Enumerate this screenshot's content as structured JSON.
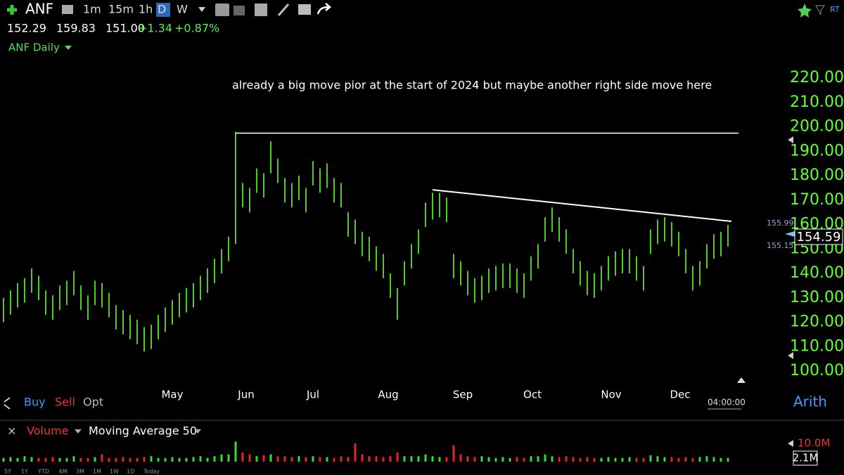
{
  "toolbar": {
    "symbol": "ANF",
    "intervals": [
      "1m",
      "15m",
      "1h",
      "D",
      "W"
    ],
    "active_interval": "D",
    "realtime": "RT"
  },
  "quote": [
    "152.29",
    "159.83",
    "151.00",
    "+1.34",
    "+0.87%"
  ],
  "chart_data": {
    "type": "ohlc",
    "title": "ANF Daily",
    "annotation": "already a big move pior at the start of 2024 but maybe another right side move here",
    "high": [
      130,
      133,
      136,
      138,
      142,
      139,
      133,
      131,
      135,
      137,
      141,
      135,
      131,
      137,
      136,
      132,
      127,
      125,
      123,
      121,
      118,
      119,
      123,
      126,
      129,
      132,
      134,
      136,
      139,
      142,
      146,
      150,
      155,
      198,
      177,
      175,
      183,
      181,
      194,
      187,
      179,
      177,
      180,
      175,
      186,
      183,
      185,
      179,
      177,
      165,
      162,
      157,
      155,
      151,
      148,
      140,
      134,
      145,
      152,
      158,
      169,
      173,
      173,
      171,
      148,
      145,
      141,
      138,
      139,
      142,
      143,
      144,
      144,
      142,
      140,
      147,
      152,
      163,
      167,
      163,
      158,
      150,
      145,
      141,
      140,
      143,
      147,
      149,
      150,
      150,
      147,
      143,
      158,
      162,
      163,
      161,
      157,
      150,
      143,
      145,
      152,
      156,
      157,
      159.83
    ],
    "low": [
      120,
      123,
      126,
      128,
      132,
      129,
      123,
      121,
      125,
      127,
      131,
      125,
      121,
      127,
      126,
      122,
      117,
      115,
      113,
      111,
      108,
      109,
      113,
      116,
      119,
      122,
      124,
      126,
      129,
      132,
      136,
      140,
      145,
      152,
      167,
      165,
      173,
      171,
      181,
      177,
      169,
      167,
      170,
      165,
      176,
      173,
      175,
      169,
      167,
      155,
      152,
      147,
      145,
      141,
      138,
      130,
      121,
      135,
      142,
      148,
      159,
      162,
      163,
      161,
      138,
      135,
      131,
      128,
      129,
      132,
      133,
      134,
      134,
      132,
      130,
      137,
      142,
      153,
      157,
      153,
      148,
      140,
      135,
      131,
      130,
      133,
      137,
      139,
      140,
      140,
      137,
      133,
      148,
      152,
      153,
      151,
      147,
      140,
      133,
      135,
      142,
      146,
      147,
      151
    ],
    "color": "#66ff33",
    "xticks": [
      {
        "value": 24,
        "label": "May"
      },
      {
        "value": 34.5,
        "label": "Jun"
      },
      {
        "value": 44,
        "label": "Jul"
      },
      {
        "value": 54.7,
        "label": "Aug"
      },
      {
        "value": 65.3,
        "label": "Sep"
      },
      {
        "value": 75.2,
        "label": "Oct"
      },
      {
        "value": 86.4,
        "label": "Nov"
      },
      {
        "value": 96.2,
        "label": "Dec"
      }
    ],
    "ylim": [
      100,
      220
    ],
    "yticks": [
      {
        "value": 100,
        "label": "100.00"
      },
      {
        "value": 110,
        "label": "110.00"
      },
      {
        "value": 120,
        "label": "120.00"
      },
      {
        "value": 130,
        "label": "130.00"
      },
      {
        "value": 140,
        "label": "140.00"
      },
      {
        "value": 150,
        "label": "150.00"
      },
      {
        "value": 160,
        "label": "160.00"
      },
      {
        "value": 170,
        "label": "170.00"
      },
      {
        "value": 180,
        "label": "180.00"
      },
      {
        "value": 190,
        "label": "190.00"
      },
      {
        "value": 200,
        "label": "200.00"
      },
      {
        "value": 210,
        "label": "210.00"
      },
      {
        "value": 220,
        "label": "220.00"
      }
    ],
    "price_labels": [
      "155.99",
      "155.15"
    ],
    "last_price": "154.59",
    "resistance": {
      "value": 197.4,
      "from": 33,
      "to": 104.5
    },
    "trendline": {
      "from": [
        61,
        174.2
      ],
      "to": [
        103.5,
        161.3
      ]
    },
    "scale_mode": "Arith",
    "time_label": "04:00:00",
    "volume": {
      "title": "Volume",
      "study": "Moving Average 50",
      "values": [
        2,
        2.5,
        2,
        3,
        2.5,
        2,
        2,
        2.5,
        2,
        2,
        3,
        2,
        2,
        2.5,
        4,
        2,
        2,
        2.5,
        2,
        2,
        2.5,
        3,
        2,
        2,
        2.5,
        2,
        2,
        2.5,
        3,
        2,
        3,
        4,
        4,
        11,
        5,
        4,
        3,
        3.5,
        4,
        3,
        3,
        2.5,
        3,
        2.5,
        3,
        2.5,
        2.5,
        2,
        3,
        2.5,
        10,
        4,
        3,
        3,
        2.5,
        3,
        5,
        3,
        3,
        3,
        4,
        3,
        2.5,
        2.5,
        9,
        4,
        3,
        2.5,
        3,
        2.5,
        2,
        2.5,
        2,
        2.5,
        2,
        3,
        3,
        4,
        3,
        2.5,
        3,
        2.5,
        2,
        2.5,
        2,
        2,
        2.5,
        2,
        2,
        2.5,
        2,
        2,
        3.5,
        3,
        2.5,
        2.5,
        2,
        2.5,
        2,
        2.5,
        3,
        2.5,
        2,
        2.1
      ],
      "up_color": "#33dd33",
      "down_color": "#ee2222",
      "ylim": [
        0,
        22
      ],
      "yticks": [
        {
          "value": 10,
          "label": "10.0M"
        }
      ],
      "last": "2.1M"
    }
  },
  "trade_buttons": [
    "Buy",
    "Sell",
    "Opt"
  ],
  "ranges": [
    "5Y",
    "1Y",
    "YTD",
    "6M",
    "3M",
    "1M",
    "1W",
    "1D",
    "Today"
  ]
}
